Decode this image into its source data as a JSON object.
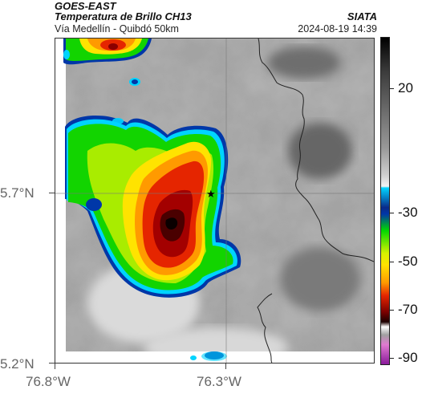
{
  "header": {
    "satellite": "GOES-EAST",
    "product": "Temperatura de Brillo CH13",
    "route": "Vía Medellín - Quibdó 50km",
    "org": "SIATA",
    "datetime": "2024-08-19 14:39"
  },
  "axes": {
    "lat_labels": [
      "5.7°N",
      "5.2°N"
    ],
    "lon_labels": [
      "76.8°W",
      "76.3°W"
    ]
  },
  "colorbar": {
    "ticks": [
      "20",
      "-30",
      "-50",
      "-70",
      "-90"
    ],
    "palette": [
      "#8a1a9a",
      "#e07ad0",
      "#000000",
      "#7a0000",
      "#e52500",
      "#ff9a00",
      "#ffe300",
      "#00d800",
      "#0037a8",
      "#00d4ff",
      "#f4f4f4",
      "#000000"
    ]
  },
  "map": {
    "marker_icon": "star-icon",
    "colors": {
      "cold_core": "#000000",
      "red": "#e52500",
      "orange": "#ff9a00",
      "yellow": "#ffe300",
      "green": "#00d800",
      "blue": "#0037a8",
      "cyan": "#00d4ff"
    }
  }
}
